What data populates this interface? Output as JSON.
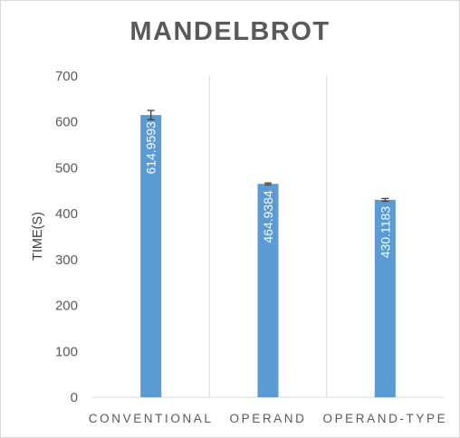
{
  "chart_data": {
    "type": "bar",
    "title": "MANDELBROT",
    "xlabel": "",
    "ylabel": "TIME(S)",
    "categories": [
      "CONVENTIONAL",
      "OPERAND",
      "OPERAND-TYPE"
    ],
    "values": [
      614.9593,
      464.9384,
      430.1183
    ],
    "data_labels": [
      "614.9593",
      "464.9384",
      "430.1183"
    ],
    "error_bars": [
      10,
      2,
      3
    ],
    "ylim": [
      0,
      700
    ],
    "yticks": [
      0,
      100,
      200,
      300,
      400,
      500,
      600,
      700
    ],
    "ytick_labels": [
      "0",
      "100",
      "200",
      "300",
      "400",
      "500",
      "600",
      "700"
    ],
    "grid": "vertical category separators",
    "legend": "none",
    "colors": {
      "bar": "#5b9bd5",
      "error_bar": "#404040",
      "axis": "#d9d9d9",
      "text": "#595959"
    }
  }
}
